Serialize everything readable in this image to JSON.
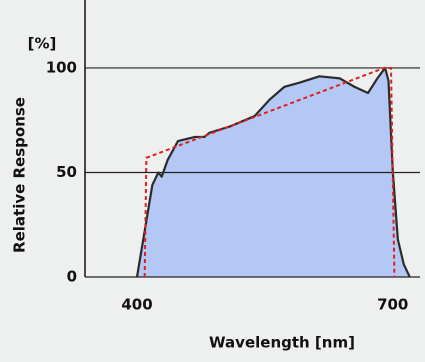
{
  "chart_data": {
    "type": "area",
    "y_unit": "[%]",
    "y_label": "Relative Response",
    "x_label": "Wavelength [nm]",
    "x": [
      400,
      409,
      418,
      425,
      429,
      436,
      448,
      468,
      479,
      485,
      509,
      538,
      556,
      573,
      591,
      614,
      638,
      655,
      671,
      682,
      691,
      695,
      700,
      706,
      713,
      720
    ],
    "values": [
      0,
      22,
      44,
      50,
      48,
      56,
      65,
      67,
      67,
      69,
      72,
      77,
      85,
      91,
      93,
      96,
      95,
      91,
      88,
      95,
      100,
      94,
      51,
      18,
      6,
      0
    ],
    "color": "#2b2b2b",
    "fill": "#b4c8f6",
    "reference": {
      "x": [
        409,
        411,
        690,
        698,
        702
      ],
      "values": [
        0,
        57,
        100,
        100,
        0
      ],
      "color": "#e0201c"
    },
    "xlim": [
      339,
      732
    ],
    "ylim": [
      0,
      132.5
    ],
    "xticks": [
      400,
      700
    ],
    "yticks": [
      0,
      50,
      100
    ],
    "grid": true
  }
}
